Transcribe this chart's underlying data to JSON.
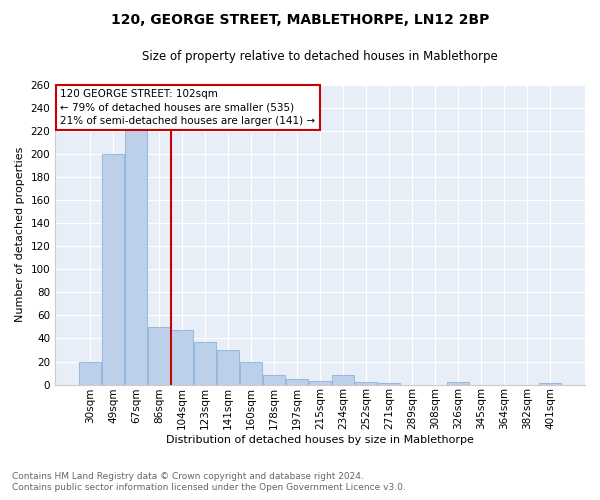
{
  "title": "120, GEORGE STREET, MABLETHORPE, LN12 2BP",
  "subtitle": "Size of property relative to detached houses in Mablethorpe",
  "xlabel": "Distribution of detached houses by size in Mablethorpe",
  "ylabel": "Number of detached properties",
  "footnote1": "Contains HM Land Registry data © Crown copyright and database right 2024.",
  "footnote2": "Contains public sector information licensed under the Open Government Licence v3.0.",
  "categories": [
    "30sqm",
    "49sqm",
    "67sqm",
    "86sqm",
    "104sqm",
    "123sqm",
    "141sqm",
    "160sqm",
    "178sqm",
    "197sqm",
    "215sqm",
    "234sqm",
    "252sqm",
    "271sqm",
    "289sqm",
    "308sqm",
    "326sqm",
    "345sqm",
    "364sqm",
    "382sqm",
    "401sqm"
  ],
  "values": [
    20,
    200,
    230,
    50,
    47,
    37,
    30,
    20,
    8,
    5,
    3,
    8,
    2,
    1,
    0,
    0,
    2,
    0,
    0,
    0,
    1
  ],
  "bar_color": "#bdd0e9",
  "bar_edge_color": "#7baad4",
  "background_color": "#e8eef7",
  "grid_color": "#ffffff",
  "red_line_after_index": 3,
  "annotation_title": "120 GEORGE STREET: 102sqm",
  "annotation_line1": "← 79% of detached houses are smaller (535)",
  "annotation_line2": "21% of semi-detached houses are larger (141) →",
  "annotation_box_color": "#ffffff",
  "annotation_box_edge_color": "#cc0000",
  "red_line_color": "#cc0000",
  "ylim": [
    0,
    260
  ],
  "yticks": [
    0,
    20,
    40,
    60,
    80,
    100,
    120,
    140,
    160,
    180,
    200,
    220,
    240,
    260
  ],
  "fig_bg_color": "#ffffff",
  "title_fontsize": 10,
  "subtitle_fontsize": 8.5,
  "ylabel_fontsize": 8,
  "xlabel_fontsize": 8,
  "tick_fontsize": 7.5,
  "footnote_fontsize": 6.5,
  "footnote_color": "#666666"
}
